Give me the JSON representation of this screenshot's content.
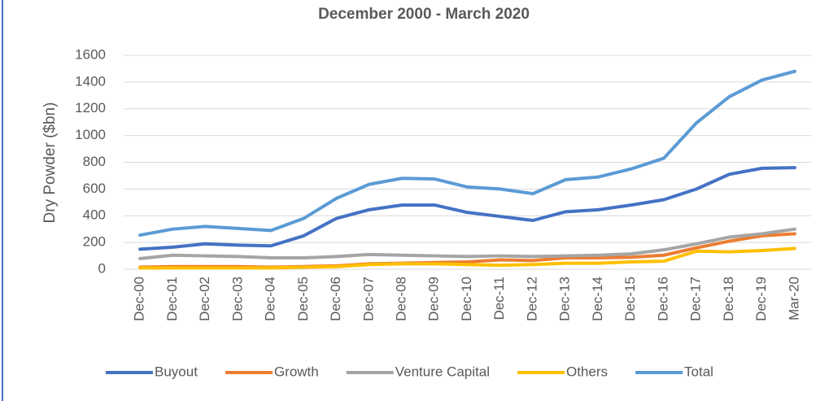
{
  "chart_data": {
    "type": "line",
    "title": "December 2000 - March 2020",
    "y_label": "Dry Powder ($bn)",
    "categories": [
      "Dec-00",
      "Dec-01",
      "Dec-02",
      "Dec-03",
      "Dec-04",
      "Dec-05",
      "Dec-06",
      "Dec-07",
      "Dec-08",
      "Dec-09",
      "Dec-10",
      "Dec-11",
      "Dec-12",
      "Dec-13",
      "Dec-14",
      "Dec-15",
      "Dec-16",
      "Dec-17",
      "Dec-18",
      "Dec-19",
      "Mar-20"
    ],
    "series": [
      {
        "name": "Buyout",
        "color": "#4472c4",
        "values": [
          150,
          165,
          190,
          180,
          175,
          250,
          380,
          445,
          480,
          480,
          425,
          395,
          365,
          430,
          445,
          480,
          520,
          600,
          710,
          755,
          760
        ]
      },
      {
        "name": "Growth",
        "color": "#ed7d31",
        "values": [
          15,
          20,
          20,
          20,
          15,
          20,
          25,
          40,
          45,
          50,
          55,
          70,
          65,
          85,
          85,
          90,
          105,
          160,
          210,
          250,
          265
        ]
      },
      {
        "name": "Venture Capital",
        "color": "#a5a5a5",
        "values": [
          80,
          105,
          100,
          95,
          85,
          85,
          95,
          110,
          105,
          100,
          95,
          100,
          95,
          100,
          105,
          115,
          145,
          190,
          240,
          265,
          300
        ]
      },
      {
        "name": "Others",
        "color": "#ffc000",
        "values": [
          10,
          10,
          10,
          10,
          10,
          15,
          20,
          35,
          40,
          40,
          35,
          30,
          35,
          45,
          45,
          55,
          60,
          135,
          130,
          140,
          155
        ]
      },
      {
        "name": "Total",
        "color": "#5b9bd5",
        "values": [
          255,
          300,
          320,
          305,
          290,
          380,
          530,
          635,
          680,
          675,
          615,
          600,
          565,
          670,
          690,
          750,
          830,
          1095,
          1290,
          1415,
          1480
        ]
      }
    ],
    "ylim": [
      0,
      1600
    ],
    "yticks": [
      0,
      200,
      400,
      600,
      800,
      1000,
      1200,
      1400,
      1600
    ],
    "grid": true,
    "legend": "bottom"
  }
}
